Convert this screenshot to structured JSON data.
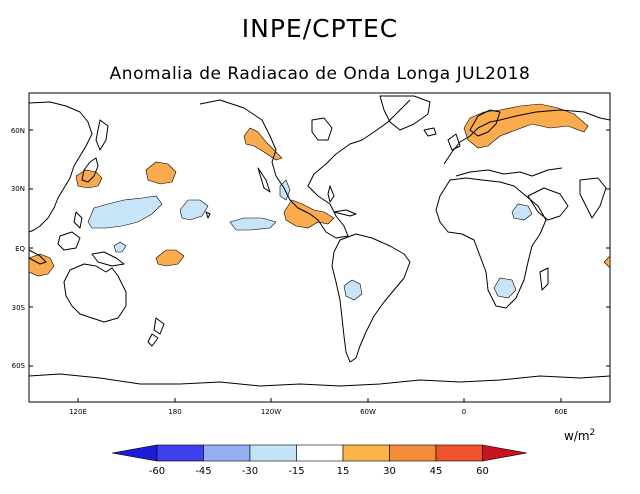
{
  "header": {
    "title": "INPE/CPTEC",
    "subtitle": "Anomalia de Radiacao de Onda Longa JUL2018"
  },
  "map": {
    "lat_labels": [
      "60N",
      "30N",
      "EQ",
      "30S",
      "60S"
    ],
    "lon_labels": [
      "120E",
      "180",
      "120W",
      "60W",
      "0",
      "60E"
    ]
  },
  "legend": {
    "units_base": "w/m",
    "units_exp": "2",
    "tick_labels": [
      "-60",
      "-45",
      "-30",
      "-15",
      "15",
      "30",
      "45",
      "60"
    ],
    "colors": {
      "lt_-60": "#1c1cd9",
      "-60_-45": "#4040f0",
      "-45_-30": "#96aef2",
      "-30_-15": "#c6e4f8",
      "-15_15": "#ffffff",
      "15_30": "#fbb448",
      "30_45": "#f58c3a",
      "45_60": "#f0532c",
      "gt_60": "#c8141e"
    }
  },
  "anomaly_colors": {
    "positive": "#f9ab4e",
    "negative": "#c8e4f8"
  }
}
